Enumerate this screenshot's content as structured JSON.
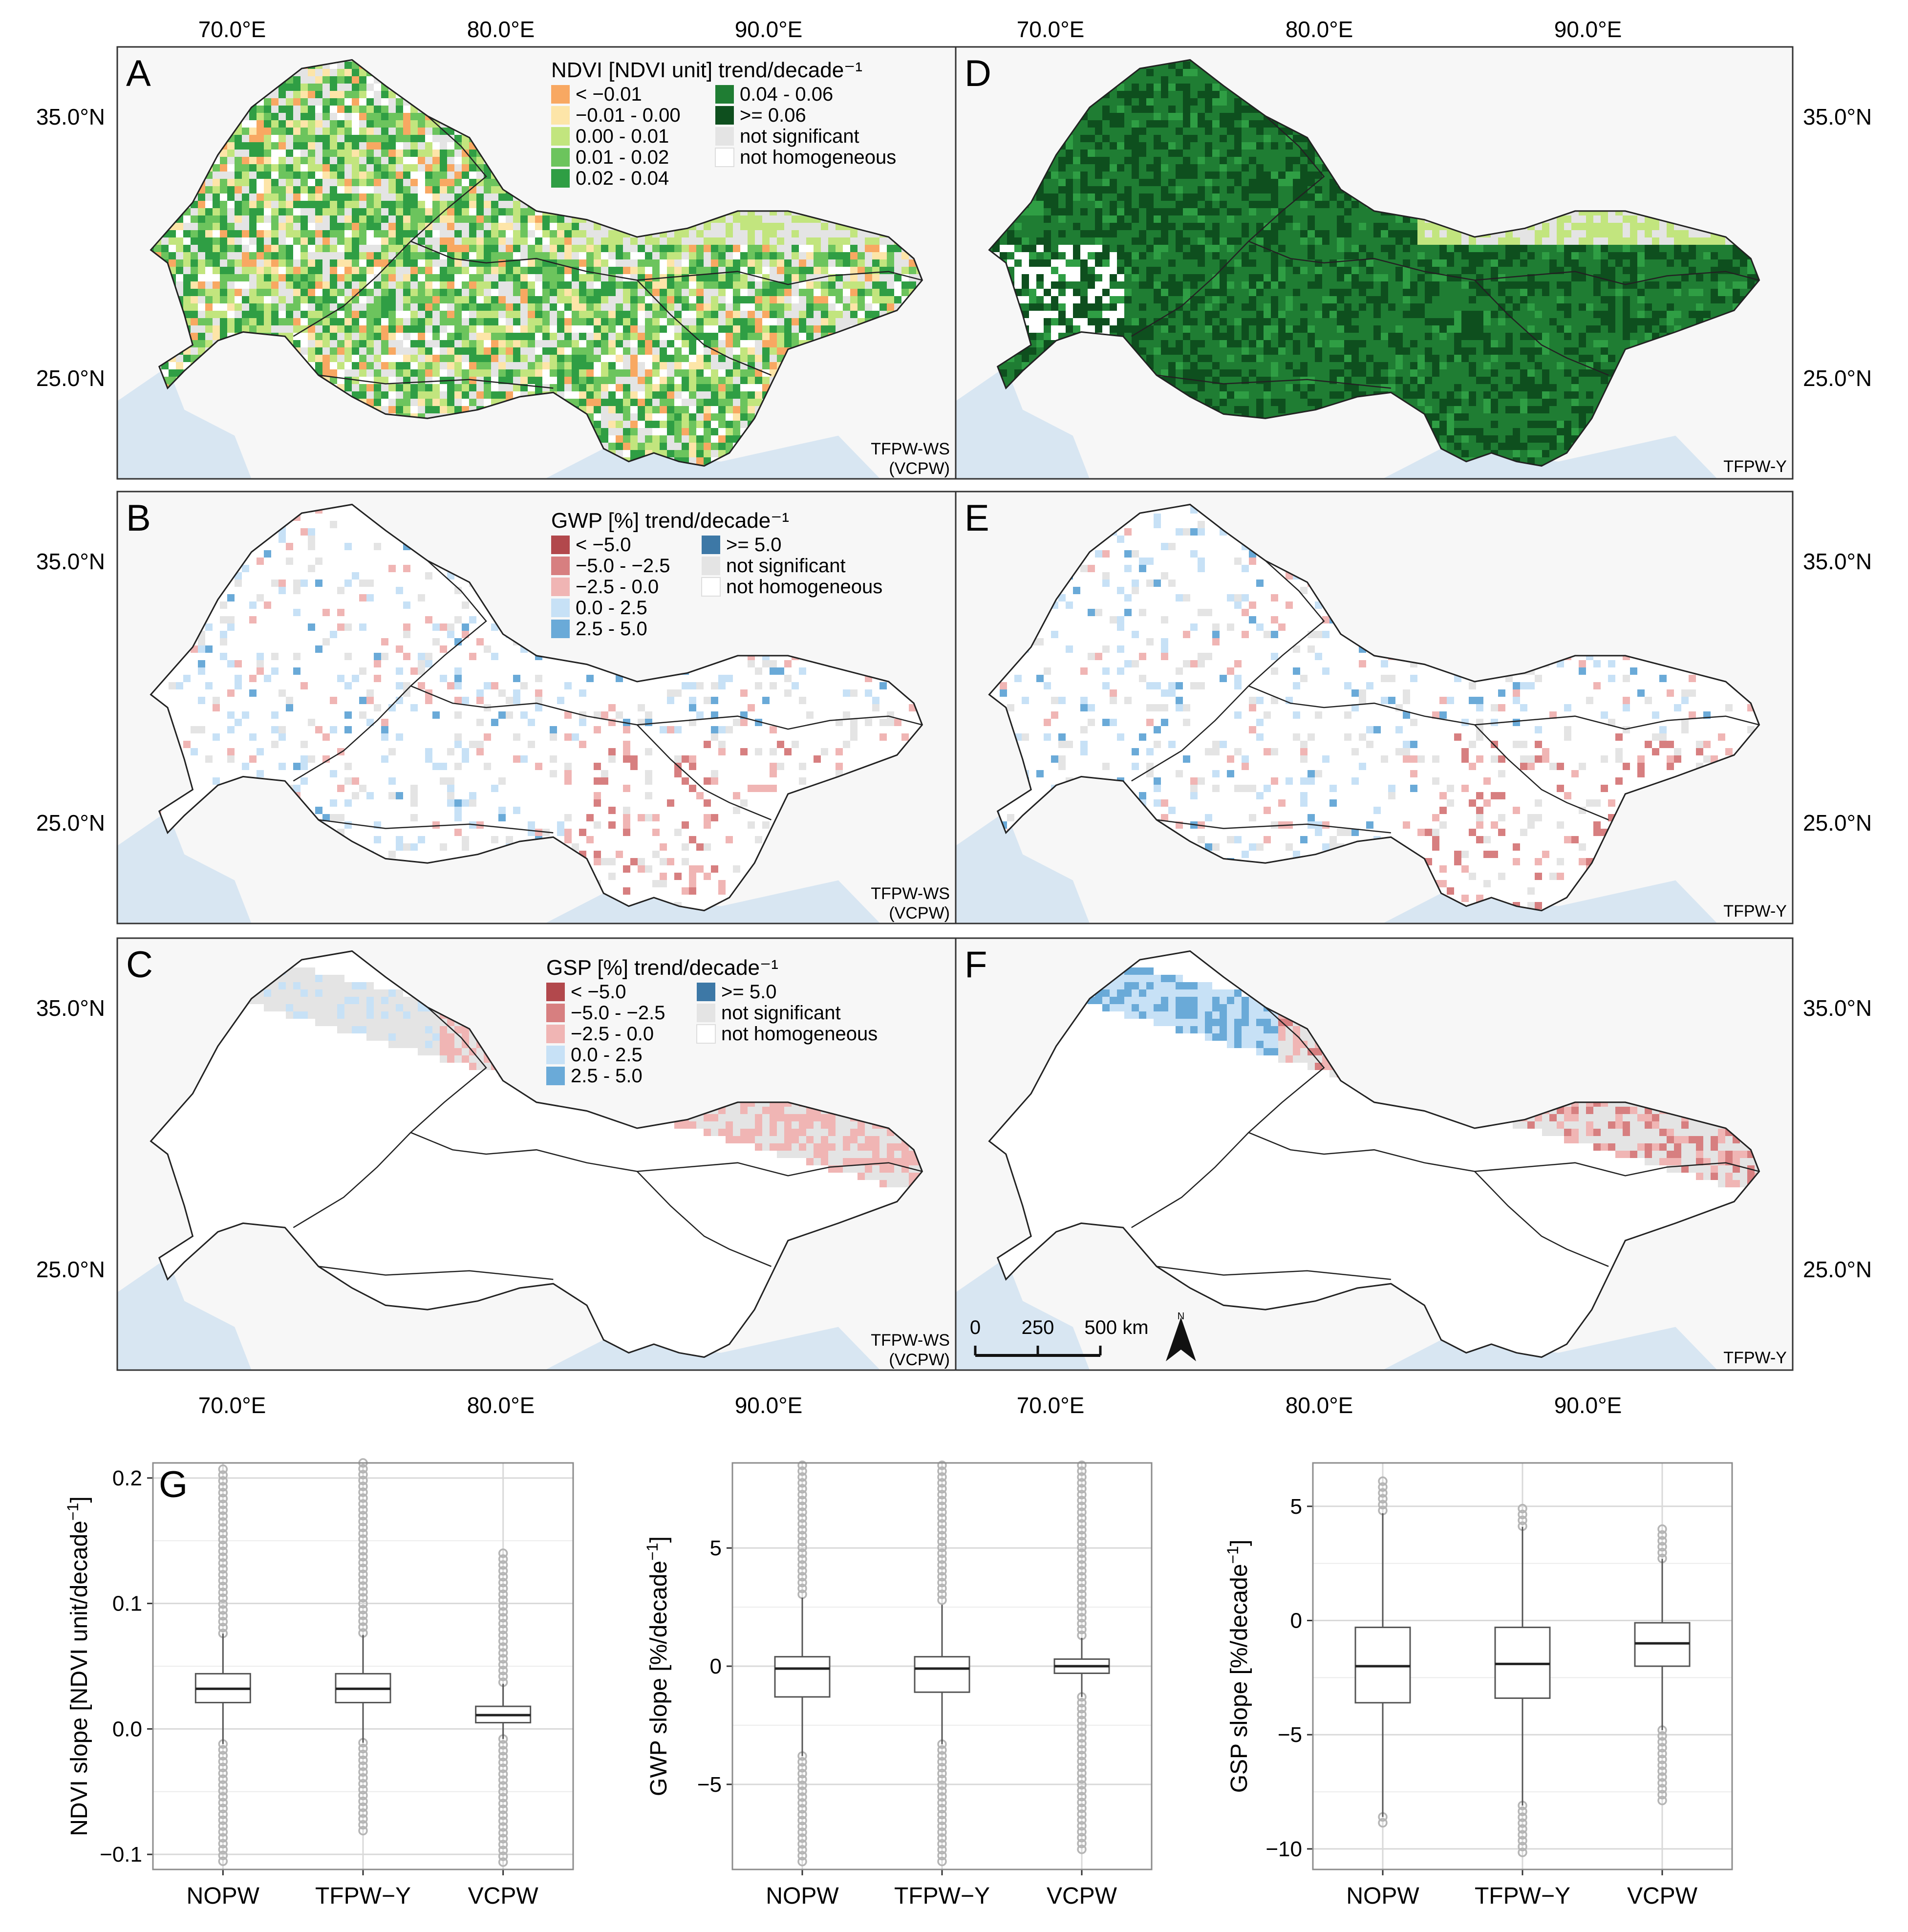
{
  "axes": {
    "lon_ticks": [
      "70.0°E",
      "80.0°E",
      "90.0°E"
    ],
    "lat_ticks": [
      "35.0°N",
      "25.0°N"
    ]
  },
  "panels": [
    {
      "letter": "A",
      "method": "TFPW-WS",
      "method2": "(VCPW)",
      "variable": "NDVI"
    },
    {
      "letter": "D",
      "method": "TFPW-Y",
      "method2": "",
      "variable": "NDVI"
    },
    {
      "letter": "B",
      "method": "TFPW-WS",
      "method2": "(VCPW)",
      "variable": "GWP"
    },
    {
      "letter": "E",
      "method": "TFPW-Y",
      "method2": "",
      "variable": "GWP"
    },
    {
      "letter": "C",
      "method": "TFPW-WS",
      "method2": "(VCPW)",
      "variable": "GSP"
    },
    {
      "letter": "F",
      "method": "TFPW-Y",
      "method2": "",
      "variable": "GSP"
    }
  ],
  "legends": {
    "ndvi": {
      "title": "NDVI [NDVI unit] trend/decade⁻¹",
      "items": [
        {
          "label": "< −0.01",
          "color": "#f8a862"
        },
        {
          "label": "−0.01 - 0.00",
          "color": "#fde5a8"
        },
        {
          "label": "0.00 - 0.01",
          "color": "#c2e57e"
        },
        {
          "label": "0.01 - 0.02",
          "color": "#6cc45d"
        },
        {
          "label": "0.02 - 0.04",
          "color": "#2f9e44"
        },
        {
          "label": "0.04 - 0.06",
          "color": "#1f7d33"
        },
        {
          "label": ">= 0.06",
          "color": "#0e4f1e"
        },
        {
          "label": "not significant",
          "color": "#e4e4e4"
        },
        {
          "label": "not homogeneous",
          "color": "#ffffff"
        }
      ]
    },
    "gwp": {
      "title": "GWP [%] trend/decade⁻¹",
      "items": [
        {
          "label": "< −5.0",
          "color": "#b2484c"
        },
        {
          "label": "−5.0 - −2.5",
          "color": "#d77f80"
        },
        {
          "label": "−2.5 - 0.0",
          "color": "#f0b5b4"
        },
        {
          "label": "0.0 - 2.5",
          "color": "#c7e1f6"
        },
        {
          "label": "2.5 - 5.0",
          "color": "#6aaad8"
        },
        {
          "label": ">= 5.0",
          "color": "#3d78a6"
        },
        {
          "label": "not significant",
          "color": "#e4e4e4"
        },
        {
          "label": "not homogeneous",
          "color": "#ffffff"
        }
      ]
    },
    "gsp": {
      "title": "GSP [%] trend/decade⁻¹",
      "items": [
        {
          "label": "< −5.0",
          "color": "#b2484c"
        },
        {
          "label": "−5.0 - −2.5",
          "color": "#d77f80"
        },
        {
          "label": "−2.5 - 0.0",
          "color": "#f0b5b4"
        },
        {
          "label": "0.0 - 2.5",
          "color": "#c7e1f6"
        },
        {
          "label": "2.5 - 5.0",
          "color": "#6aaad8"
        },
        {
          "label": ">= 5.0",
          "color": "#3d78a6"
        },
        {
          "label": "not significant",
          "color": "#e4e4e4"
        },
        {
          "label": "not homogeneous",
          "color": "#ffffff"
        }
      ]
    }
  },
  "scalebar": {
    "labels": [
      "0",
      "250",
      "500 km"
    ],
    "north": "N"
  },
  "chart_data": [
    {
      "type": "box",
      "panel_label": "G",
      "ylabel": "NDVI slope [NDVI unit/decade",
      "ylabel_sup": "−1",
      "ylabel_end": "]",
      "ylim": [
        -0.112,
        0.212
      ],
      "yticks": [
        -0.1,
        0.0,
        0.1,
        0.2
      ],
      "ytick_labels": [
        "−0.1",
        "0.0",
        "0.1",
        "0.2"
      ],
      "categories": [
        "NOPW",
        "TFPW−Y",
        "VCPW"
      ],
      "boxes": [
        {
          "wlo": -0.012,
          "q1": 0.021,
          "med": 0.032,
          "q3": 0.044,
          "whi": 0.076,
          "outlo": -0.11,
          "outhi": 0.207
        },
        {
          "wlo": -0.011,
          "q1": 0.021,
          "med": 0.032,
          "q3": 0.044,
          "whi": 0.075,
          "outlo": -0.085,
          "outhi": 0.212
        },
        {
          "wlo": -0.008,
          "q1": 0.005,
          "med": 0.011,
          "q3": 0.018,
          "whi": 0.036,
          "outlo": -0.108,
          "outhi": 0.14
        }
      ]
    },
    {
      "type": "box",
      "panel_label": "",
      "ylabel": "GWP slope [%/decade",
      "ylabel_sup": "−1",
      "ylabel_end": "]",
      "ylim": [
        -8.6,
        8.6
      ],
      "yticks": [
        -5,
        0,
        5
      ],
      "ytick_labels": [
        "−5",
        "0",
        "5"
      ],
      "categories": [
        "NOPW",
        "TFPW−Y",
        "VCPW"
      ],
      "boxes": [
        {
          "wlo": -3.8,
          "q1": -1.3,
          "med": -0.1,
          "q3": 0.4,
          "whi": 2.9,
          "outlo": -8.5,
          "outhi": 8.5
        },
        {
          "wlo": -3.3,
          "q1": -1.1,
          "med": -0.1,
          "q3": 0.4,
          "whi": 2.6,
          "outlo": -8.5,
          "outhi": 8.5
        },
        {
          "wlo": -1.3,
          "q1": -0.3,
          "med": 0.0,
          "q3": 0.3,
          "whi": 1.2,
          "outlo": -7.8,
          "outhi": 8.5
        }
      ]
    },
    {
      "type": "box",
      "panel_label": "",
      "ylabel": "GSP slope [%/decade",
      "ylabel_sup": "−1",
      "ylabel_end": "]",
      "ylim": [
        -10.9,
        6.9
      ],
      "yticks": [
        -10,
        -5,
        0,
        5
      ],
      "ytick_labels": [
        "−10",
        "−5",
        "0",
        "5"
      ],
      "categories": [
        "NOPW",
        "TFPW−Y",
        "VCPW"
      ],
      "boxes": [
        {
          "wlo": -8.6,
          "q1": -3.6,
          "med": -2.0,
          "q3": -0.3,
          "whi": 4.7,
          "outlo": -9.1,
          "outhi": 6.1
        },
        {
          "wlo": -8.1,
          "q1": -3.4,
          "med": -1.9,
          "q3": -0.3,
          "whi": 4.1,
          "outlo": -10.3,
          "outhi": 4.9
        },
        {
          "wlo": -4.8,
          "q1": -2.0,
          "med": -1.0,
          "q3": -0.1,
          "whi": 2.7,
          "outlo": -8.1,
          "outhi": 4.0
        }
      ]
    }
  ]
}
